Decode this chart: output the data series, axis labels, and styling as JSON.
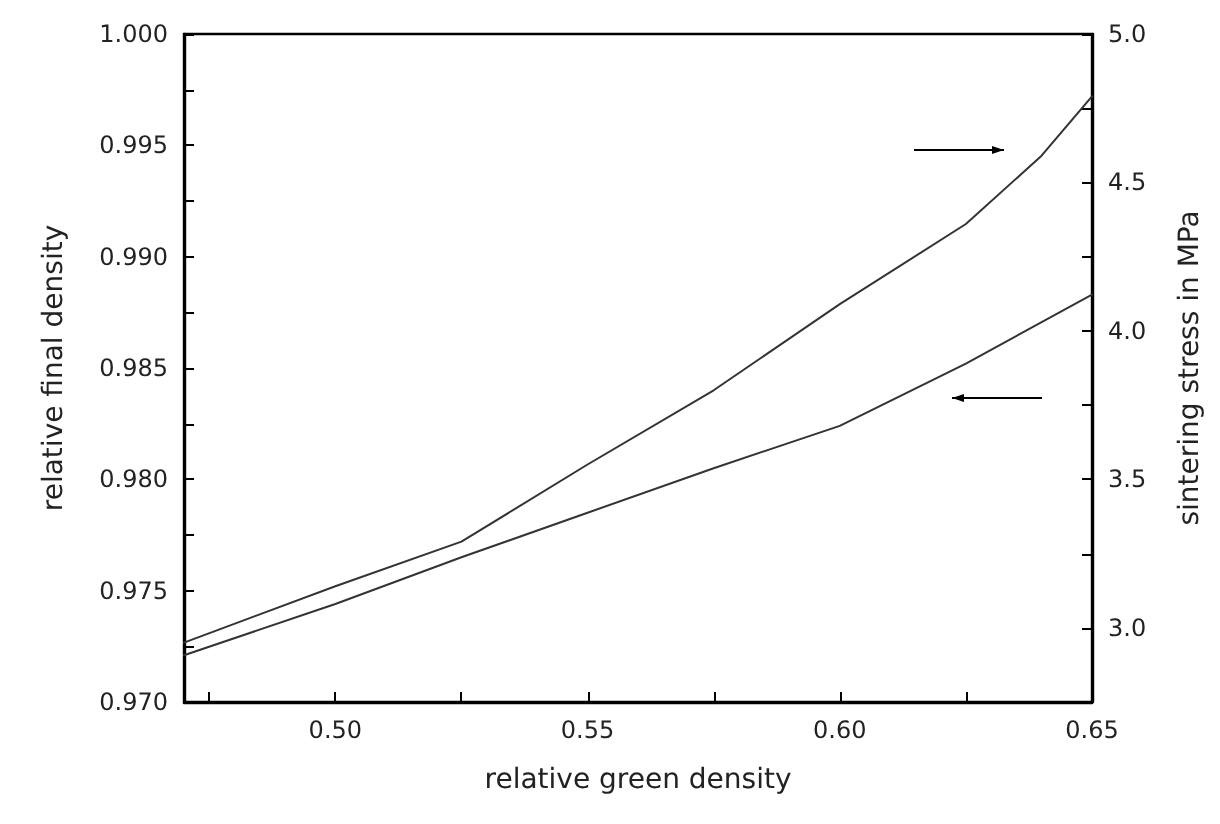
{
  "chart_data": {
    "type": "line",
    "xlabel": "relative green density",
    "ylabel": "relative final density",
    "y2label": "sintering stress in MPa",
    "series": [
      {
        "color": "#333333",
        "x": [
          0.47,
          0.5,
          0.525,
          0.55,
          0.575,
          0.6,
          0.625,
          0.65
        ],
        "values": [
          0.9721,
          0.9744,
          0.9765,
          0.9785,
          0.9805,
          0.9824,
          0.9852,
          0.9883
        ]
      },
      {
        "color": "#333333",
        "axis": "y2",
        "x": [
          0.47,
          0.5,
          0.525,
          0.55,
          0.575,
          0.6,
          0.625,
          0.64,
          0.65
        ],
        "values": [
          2.95,
          3.14,
          3.29,
          3.55,
          3.8,
          4.09,
          4.36,
          4.59,
          4.79
        ]
      }
    ],
    "xlim": [
      0.47,
      0.65
    ],
    "xticks": [
      {
        "value": 0.475,
        "label": null
      },
      {
        "value": 0.5,
        "label": "0.50"
      },
      {
        "value": 0.525,
        "label": null
      },
      {
        "value": 0.55,
        "label": "0.55"
      },
      {
        "value": 0.575,
        "label": null
      },
      {
        "value": 0.6,
        "label": "0.60"
      },
      {
        "value": 0.625,
        "label": null
      },
      {
        "value": 0.65,
        "label": "0.65"
      }
    ],
    "ylim": [
      0.97,
      1.0
    ],
    "yticks": [
      {
        "value": 0.97,
        "label": "0.970"
      },
      {
        "value": 0.9725,
        "label": null
      },
      {
        "value": 0.975,
        "label": "0.975"
      },
      {
        "value": 0.9775,
        "label": null
      },
      {
        "value": 0.98,
        "label": "0.980"
      },
      {
        "value": 0.9825,
        "label": null
      },
      {
        "value": 0.985,
        "label": "0.985"
      },
      {
        "value": 0.9875,
        "label": null
      },
      {
        "value": 0.99,
        "label": "0.990"
      },
      {
        "value": 0.9925,
        "label": null
      },
      {
        "value": 0.995,
        "label": "0.995"
      },
      {
        "value": 0.9975,
        "label": null
      },
      {
        "value": 1.0,
        "label": "1.000"
      }
    ],
    "y2lim": [
      2.75,
      5.0
    ],
    "y2ticks": [
      {
        "value": 3.0,
        "label": "3.0"
      },
      {
        "value": 3.25,
        "label": null
      },
      {
        "value": 3.5,
        "label": "3.5"
      },
      {
        "value": 3.75,
        "label": null
      },
      {
        "value": 4.0,
        "label": "4.0"
      },
      {
        "value": 4.25,
        "label": null
      },
      {
        "value": 4.5,
        "label": "4.5"
      },
      {
        "value": 4.75,
        "label": null
      },
      {
        "value": 5.0,
        "label": "5.0"
      }
    ],
    "marker": "none",
    "line_style": "solid",
    "grid": false
  }
}
